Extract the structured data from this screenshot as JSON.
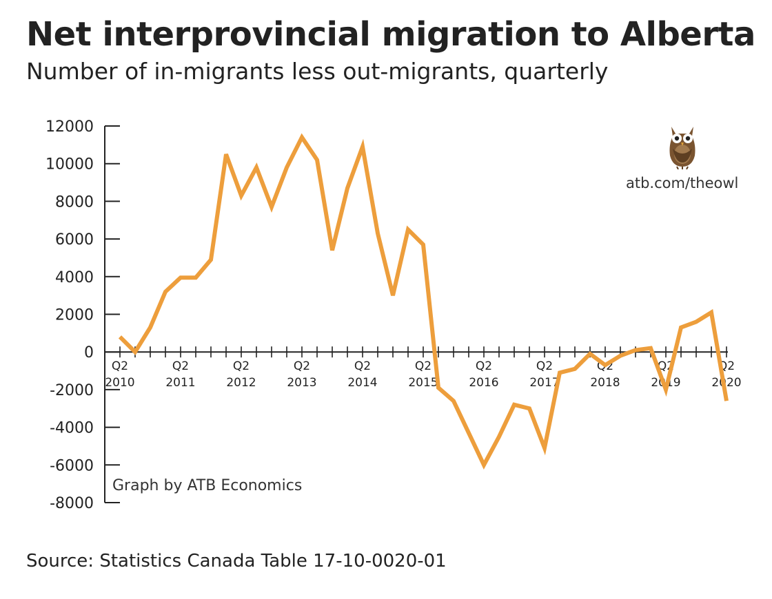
{
  "title": "Net interprovincial migration to Alberta",
  "subtitle": "Number of in-migrants less out-migrants, quarterly",
  "source": "Source: Statistics Canada Table 17-10-0020-01",
  "credit": "atb.com/theowl",
  "logo_icon": "owl-icon",
  "colors": {
    "line": "#ED9E3C",
    "axis": "#222222",
    "text": "#222222"
  },
  "chart_data": {
    "type": "line",
    "title": "Net interprovincial migration to Alberta",
    "subtitle": "Number of in-migrants less out-migrants, quarterly",
    "annotation": "Graph by ATB Economics",
    "xlabel": "",
    "ylabel": "",
    "ylim": [
      -8000,
      12000
    ],
    "y_ticks": [
      12000,
      10000,
      8000,
      6000,
      4000,
      2000,
      0,
      -2000,
      -4000,
      -6000,
      -8000
    ],
    "x_tick_labels": [
      {
        "quarter": "Q2",
        "year": "2010"
      },
      {
        "quarter": "Q2",
        "year": "2011"
      },
      {
        "quarter": "Q2",
        "year": "2012"
      },
      {
        "quarter": "Q2",
        "year": "2013"
      },
      {
        "quarter": "Q2",
        "year": "2014"
      },
      {
        "quarter": "Q2",
        "year": "2015"
      },
      {
        "quarter": "Q2",
        "year": "2016"
      },
      {
        "quarter": "Q2",
        "year": "2017"
      },
      {
        "quarter": "Q2",
        "year": "2018"
      },
      {
        "quarter": "Q2",
        "year": "2019"
      },
      {
        "quarter": "Q2",
        "year": "2020"
      }
    ],
    "grid": false,
    "legend": "none",
    "series": [
      {
        "values": [
          800,
          0,
          1300,
          3200,
          3950,
          3950,
          4900,
          10500,
          8300,
          9800,
          7700,
          9800,
          11400,
          10200,
          5400,
          8700,
          10900,
          6300,
          3000,
          6500,
          5700,
          -1900,
          -2600,
          -4300,
          -6000,
          -4500,
          -2800,
          -3000,
          -5100,
          -1100,
          -900,
          -100,
          -700,
          -200,
          100,
          200,
          -2000,
          1300,
          1600,
          2100,
          -2600
        ]
      }
    ]
  }
}
